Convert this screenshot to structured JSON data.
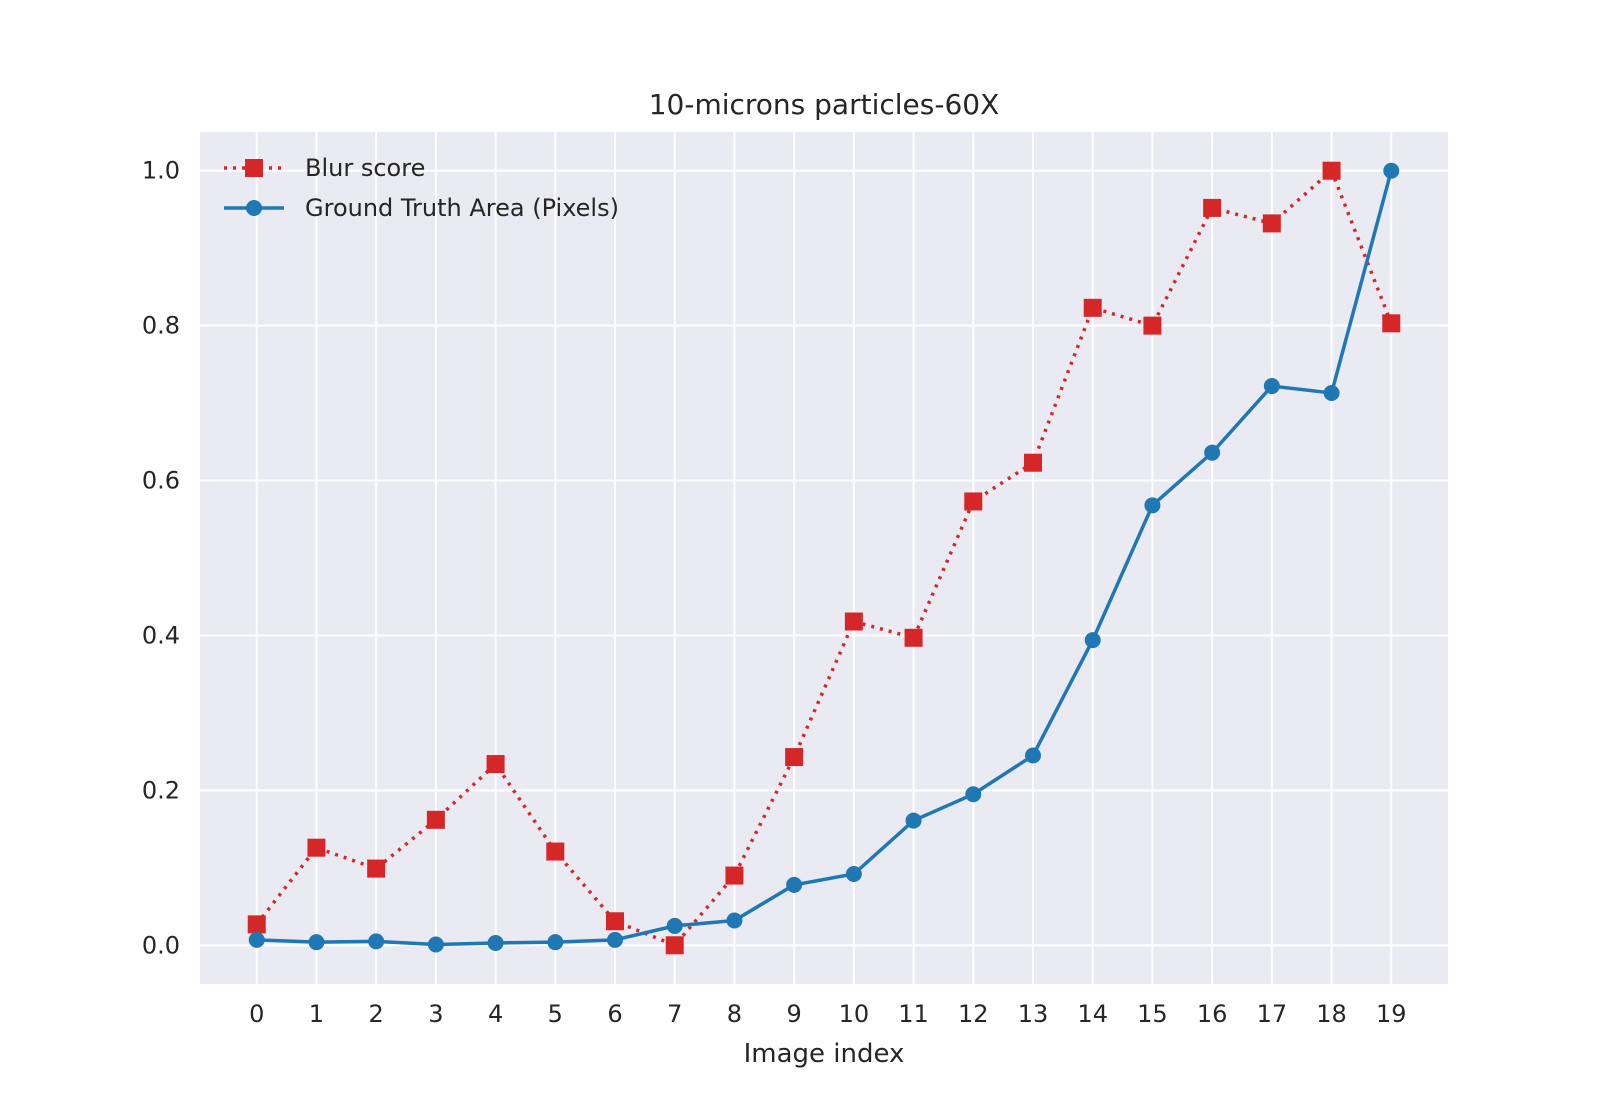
{
  "chart_data": {
    "type": "line",
    "title": "10-microns particles-60X",
    "xlabel": "Image index",
    "ylabel": "",
    "x": [
      0,
      1,
      2,
      3,
      4,
      5,
      6,
      7,
      8,
      9,
      10,
      11,
      12,
      13,
      14,
      15,
      16,
      17,
      18,
      19
    ],
    "x_ticks": [
      "0",
      "1",
      "2",
      "3",
      "4",
      "5",
      "6",
      "7",
      "8",
      "9",
      "10",
      "11",
      "12",
      "13",
      "14",
      "15",
      "16",
      "17",
      "18",
      "19"
    ],
    "y_ticks": [
      "0.0",
      "0.2",
      "0.4",
      "0.6",
      "0.8",
      "1.0"
    ],
    "xlim": [
      -0.95,
      19.95
    ],
    "ylim": [
      -0.05,
      1.05
    ],
    "grid": true,
    "legend_position": "top-left",
    "series": [
      {
        "name": "Blur score",
        "color": "#d62728",
        "marker": "square",
        "line_style": "dotted",
        "values": [
          0.027,
          0.126,
          0.099,
          0.162,
          0.234,
          0.121,
          0.031,
          0.0,
          0.09,
          0.243,
          0.418,
          0.397,
          0.573,
          0.623,
          0.823,
          0.8,
          0.952,
          0.932,
          1.0,
          0.803
        ]
      },
      {
        "name": "Ground Truth Area (Pixels)",
        "color": "#1f77b4",
        "marker": "circle",
        "line_style": "solid",
        "values": [
          0.007,
          0.004,
          0.005,
          0.001,
          0.003,
          0.004,
          0.007,
          0.025,
          0.032,
          0.078,
          0.092,
          0.161,
          0.195,
          0.245,
          0.394,
          0.568,
          0.636,
          0.722,
          0.713,
          1.0
        ]
      }
    ]
  }
}
